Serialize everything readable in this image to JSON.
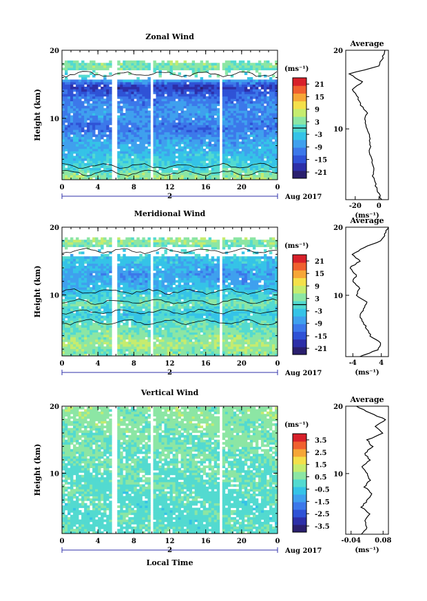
{
  "chart_data": [
    {
      "type": "heatmap",
      "title": "Zonal Wind",
      "ylabel": "Height (km)",
      "xlabel": "",
      "x_ticks": [
        "0",
        "4",
        "8",
        "12",
        "16",
        "20",
        "0"
      ],
      "y_ticks": [
        "10",
        "20"
      ],
      "xlim": [
        0,
        24
      ],
      "ylim": [
        1,
        20
      ],
      "date_label": "2",
      "month_label": "Aug 2017",
      "colorbar": {
        "unit": "(ms⁻¹)",
        "ticks": [
          "21",
          "15",
          "9",
          "3",
          "-3",
          "-9",
          "-15",
          "-21"
        ],
        "range": [
          -24,
          24
        ],
        "contour": 0
      },
      "data_gaps_hours": [
        [
          5.6,
          6.2
        ],
        [
          9.7,
          10.2
        ],
        [
          17.4,
          17.9
        ]
      ],
      "field_rows": [
        {
          "z": 17.5,
          "v": 3
        },
        {
          "z": 16.0,
          "v": 0
        },
        {
          "z": 14.5,
          "v": -18
        },
        {
          "z": 13.0,
          "v": -12
        },
        {
          "z": 11.5,
          "v": -9
        },
        {
          "z": 10.0,
          "v": -8
        },
        {
          "z": 8.5,
          "v": -12
        },
        {
          "z": 7.0,
          "v": -8
        },
        {
          "z": 5.5,
          "v": -6
        },
        {
          "z": 4.0,
          "v": -3
        },
        {
          "z": 2.5,
          "v": -1
        },
        {
          "z": 1.5,
          "v": 4
        }
      ],
      "profile": {
        "title": "Average",
        "xlabel": "(ms⁻¹)",
        "x_ticks": [
          "-20",
          "0"
        ],
        "xlim": [
          -28,
          8
        ],
        "heights": [
          1,
          2,
          3,
          4,
          5,
          6,
          7,
          8,
          9,
          10,
          11,
          12,
          13,
          14,
          15,
          16,
          17,
          18,
          19,
          20
        ],
        "values": [
          2,
          -1,
          -3,
          -5,
          -4,
          -6,
          -8,
          -7,
          -8,
          -10,
          -12,
          -10,
          -15,
          -18,
          -22,
          -14,
          -25,
          0,
          3,
          5
        ]
      }
    },
    {
      "type": "heatmap",
      "title": "Meridional Wind",
      "ylabel": "Height (km)",
      "xlabel": "",
      "x_ticks": [
        "0",
        "4",
        "8",
        "12",
        "16",
        "20",
        "0"
      ],
      "y_ticks": [
        "10",
        "20"
      ],
      "xlim": [
        0,
        24
      ],
      "ylim": [
        1,
        20
      ],
      "date_label": "2",
      "month_label": "Aug 2017",
      "colorbar": {
        "unit": "(ms⁻¹)",
        "ticks": [
          "21",
          "15",
          "9",
          "3",
          "-3",
          "-9",
          "-15",
          "-21"
        ],
        "range": [
          -24,
          24
        ],
        "contour": 0
      },
      "data_gaps_hours": [
        [
          5.6,
          6.2
        ],
        [
          9.7,
          10.2
        ],
        [
          17.4,
          17.9
        ]
      ],
      "field_rows": [
        {
          "z": 17.5,
          "v": 4
        },
        {
          "z": 16.0,
          "v": -2
        },
        {
          "z": 14.5,
          "v": -4
        },
        {
          "z": 13.0,
          "v": -8
        },
        {
          "z": 11.5,
          "v": -6
        },
        {
          "z": 10.0,
          "v": -2
        },
        {
          "z": 8.5,
          "v": 2
        },
        {
          "z": 7.0,
          "v": -3
        },
        {
          "z": 5.5,
          "v": 1
        },
        {
          "z": 4.0,
          "v": 3
        },
        {
          "z": 2.5,
          "v": 6
        },
        {
          "z": 1.5,
          "v": 3
        }
      ],
      "profile": {
        "title": "Average",
        "xlabel": "(ms⁻¹)",
        "x_ticks": [
          "-4",
          "4"
        ],
        "xlim": [
          -6,
          6
        ],
        "heights": [
          1,
          2,
          3,
          4,
          5,
          6,
          7,
          8,
          9,
          10,
          11,
          12,
          13,
          14,
          15,
          16,
          17,
          18,
          19,
          20
        ],
        "values": [
          -2,
          3,
          4,
          1,
          0,
          -1,
          -2,
          -1,
          0,
          -3,
          -2,
          -4,
          -3,
          -5,
          -2,
          -4,
          -1,
          4,
          5,
          6
        ]
      }
    },
    {
      "type": "heatmap",
      "title": "Vertical Wind",
      "ylabel": "Height (km)",
      "xlabel": "Local Time",
      "x_ticks": [
        "0",
        "4",
        "8",
        "12",
        "16",
        "20",
        "0"
      ],
      "y_ticks": [
        "10",
        "20"
      ],
      "xlim": [
        0,
        24
      ],
      "ylim": [
        1,
        20
      ],
      "date_label": "2",
      "month_label": "Aug 2017",
      "colorbar": {
        "unit": "(ms⁻¹)",
        "ticks": [
          "3.5",
          "2.5",
          "1.5",
          "0.5",
          "-0.5",
          "-1.5",
          "-2.5",
          "-3.5"
        ],
        "range": [
          -4,
          4
        ]
      },
      "data_gaps_hours": [
        [
          5.6,
          6.2
        ],
        [
          9.7,
          10.2
        ],
        [
          17.4,
          17.9
        ]
      ],
      "field_rows": [
        {
          "z": 18.0,
          "v": 0.6
        },
        {
          "z": 15.0,
          "v": 0.4
        },
        {
          "z": 12.0,
          "v": 0.3
        },
        {
          "z": 9.0,
          "v": 0.2
        },
        {
          "z": 6.0,
          "v": 0.1
        },
        {
          "z": 3.0,
          "v": 0.1
        }
      ],
      "profile": {
        "title": "Average",
        "xlabel": "(ms⁻¹)",
        "x_ticks": [
          "-0.04",
          "0.08"
        ],
        "xlim": [
          -0.06,
          0.1
        ],
        "heights": [
          1,
          2,
          3,
          4,
          5,
          6,
          7,
          8,
          9,
          10,
          11,
          12,
          13,
          14,
          15,
          16,
          17,
          18,
          19,
          20
        ],
        "values": [
          0.0,
          0.02,
          0.01,
          0.03,
          0.0,
          0.02,
          0.04,
          0.01,
          0.03,
          0.02,
          0.0,
          0.03,
          0.01,
          0.04,
          0.02,
          0.08,
          0.05,
          0.09,
          0.03,
          -0.02
        ]
      }
    }
  ]
}
